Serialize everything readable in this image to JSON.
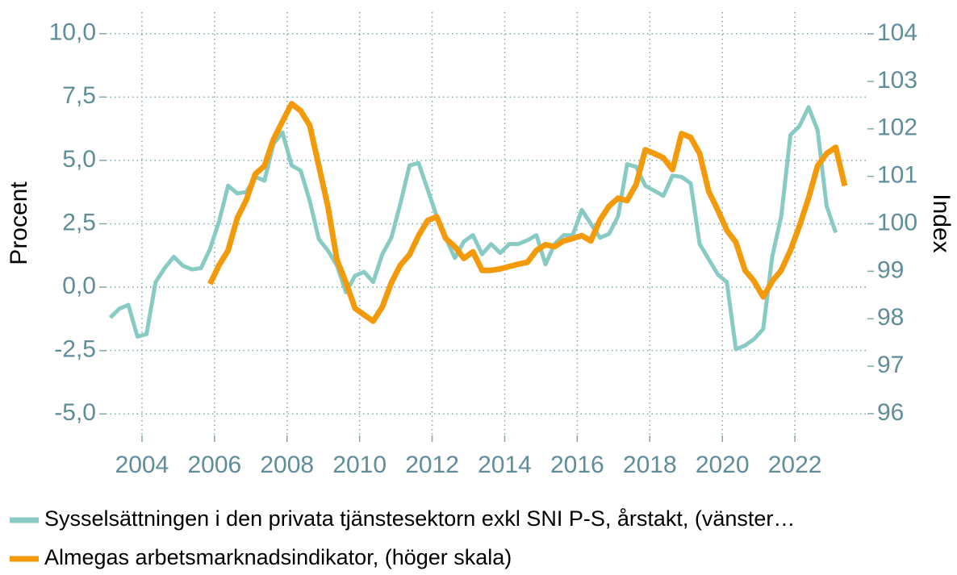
{
  "chart_data": {
    "type": "line",
    "y_label": "Procent",
    "y2_label": "Index",
    "xlim": [
      2003,
      2024
    ],
    "xticks": [
      2004,
      2006,
      2008,
      2010,
      2012,
      2014,
      2016,
      2018,
      2020,
      2022
    ],
    "ylim": [
      -5.85,
      10.85
    ],
    "yticks": [
      {
        "value": -5,
        "label": "-5,0"
      },
      {
        "value": -2.5,
        "label": "-2,5"
      },
      {
        "value": 0,
        "label": "0,0"
      },
      {
        "value": 2.5,
        "label": "2,5"
      },
      {
        "value": 5,
        "label": "5,0"
      },
      {
        "value": 7.5,
        "label": "7,5"
      },
      {
        "value": 10,
        "label": "10,0"
      }
    ],
    "y2lim": [
      95.54,
      104.46
    ],
    "y2ticks": [
      96,
      97,
      98,
      99,
      100,
      101,
      102,
      103,
      104
    ],
    "grid": true,
    "legend": "bottom",
    "series": [
      {
        "name": "Sysselsättningen i den privata tjänstesektorn exkl SNI P-S, årstakt, (vänster…",
        "color": "#88cbc4",
        "axis": "y",
        "x": [
          2003.125,
          2003.375,
          2003.625,
          2003.875,
          2004.125,
          2004.375,
          2004.625,
          2004.875,
          2005.125,
          2005.375,
          2005.625,
          2005.875,
          2006.125,
          2006.375,
          2006.625,
          2006.875,
          2007.125,
          2007.375,
          2007.625,
          2007.875,
          2008.125,
          2008.375,
          2008.625,
          2008.875,
          2009.125,
          2009.375,
          2009.625,
          2009.875,
          2010.125,
          2010.375,
          2010.625,
          2010.875,
          2011.125,
          2011.375,
          2011.625,
          2011.875,
          2012.125,
          2012.375,
          2012.625,
          2012.875,
          2013.125,
          2013.375,
          2013.625,
          2013.875,
          2014.125,
          2014.375,
          2014.625,
          2014.875,
          2015.125,
          2015.375,
          2015.625,
          2015.875,
          2016.125,
          2016.375,
          2016.625,
          2016.875,
          2017.125,
          2017.375,
          2017.625,
          2017.875,
          2018.125,
          2018.375,
          2018.625,
          2018.875,
          2019.125,
          2019.375,
          2019.625,
          2019.875,
          2020.125,
          2020.375,
          2020.625,
          2020.875,
          2021.125,
          2021.375,
          2021.625,
          2021.875,
          2022.125,
          2022.375,
          2022.625,
          2022.875,
          2023.125
        ],
        "values": [
          -1.2,
          -0.85,
          -0.7,
          -1.95,
          -1.85,
          0.2,
          0.75,
          1.2,
          0.85,
          0.7,
          0.75,
          1.5,
          2.6,
          4.0,
          3.7,
          3.75,
          4.35,
          4.2,
          5.65,
          6.1,
          4.8,
          4.6,
          3.4,
          1.9,
          1.45,
          0.85,
          -0.2,
          0.45,
          0.6,
          0.2,
          1.3,
          1.95,
          3.3,
          4.8,
          4.9,
          3.85,
          2.8,
          1.95,
          1.15,
          1.8,
          2.05,
          1.3,
          1.7,
          1.35,
          1.7,
          1.7,
          1.85,
          2.05,
          0.9,
          1.7,
          2.05,
          2.05,
          3.05,
          2.5,
          1.95,
          2.1,
          2.8,
          4.85,
          4.75,
          4.0,
          3.8,
          3.6,
          4.4,
          4.35,
          4.1,
          1.7,
          1.1,
          0.5,
          0.2,
          -2.45,
          -2.3,
          -2.05,
          -1.65,
          1.2,
          2.8,
          6.0,
          6.35,
          7.1,
          6.2,
          3.2,
          2.15
        ]
      },
      {
        "name": "Almegas arbetsmarknadsindikator, (höger skala)",
        "color": "#f39a0b",
        "axis": "y2",
        "x": [
          2005.875,
          2006.125,
          2006.375,
          2006.625,
          2006.875,
          2007.125,
          2007.375,
          2007.625,
          2007.875,
          2008.125,
          2008.375,
          2008.625,
          2008.875,
          2009.125,
          2009.375,
          2009.625,
          2009.875,
          2010.125,
          2010.375,
          2010.625,
          2010.875,
          2011.125,
          2011.375,
          2011.625,
          2011.875,
          2012.125,
          2012.375,
          2012.625,
          2012.875,
          2013.125,
          2013.375,
          2013.625,
          2013.875,
          2014.125,
          2014.375,
          2014.625,
          2014.875,
          2015.125,
          2015.375,
          2015.625,
          2015.875,
          2016.125,
          2016.375,
          2016.625,
          2016.875,
          2017.125,
          2017.375,
          2017.625,
          2017.875,
          2018.125,
          2018.375,
          2018.625,
          2018.875,
          2019.125,
          2019.375,
          2019.625,
          2019.875,
          2020.125,
          2020.375,
          2020.625,
          2020.875,
          2021.125,
          2021.375,
          2021.625,
          2021.875,
          2022.125,
          2022.375,
          2022.625,
          2022.875,
          2023.125,
          2023.375
        ],
        "values": [
          98.73,
          99.13,
          99.44,
          100.12,
          100.5,
          101.05,
          101.22,
          101.78,
          102.16,
          102.53,
          102.38,
          102.07,
          101.22,
          100.37,
          99.24,
          98.76,
          98.22,
          98.08,
          97.95,
          98.25,
          98.76,
          99.13,
          99.35,
          99.75,
          100.07,
          100.15,
          99.69,
          99.52,
          99.27,
          99.41,
          99.02,
          99.02,
          99.05,
          99.1,
          99.15,
          99.19,
          99.44,
          99.56,
          99.52,
          99.64,
          99.69,
          99.75,
          99.64,
          100.08,
          100.37,
          100.54,
          100.49,
          100.83,
          101.56,
          101.48,
          101.39,
          101.14,
          101.9,
          101.82,
          101.48,
          100.68,
          100.29,
          99.86,
          99.61,
          99.02,
          98.79,
          98.46,
          98.79,
          99.02,
          99.44,
          99.95,
          100.54,
          101.22,
          101.48,
          101.61,
          100.8
        ]
      }
    ]
  }
}
